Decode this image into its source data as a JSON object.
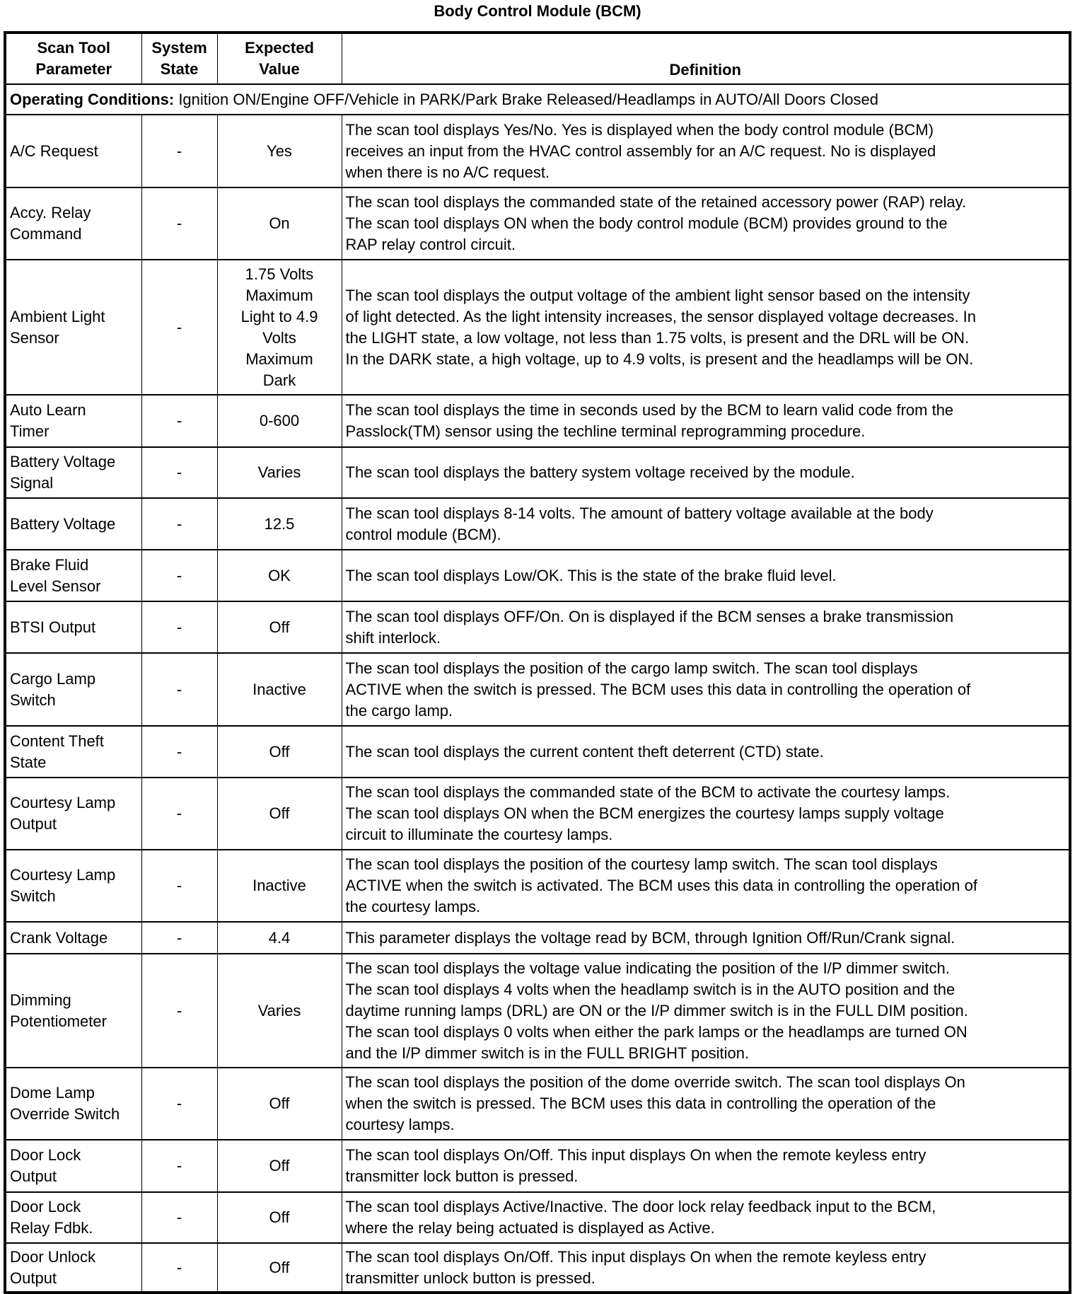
{
  "title": "Body Control Module (BCM)",
  "headers": {
    "parameter": "Scan Tool\nParameter",
    "state": "System\nState",
    "expected": "Expected\nValue",
    "definition": "Definition"
  },
  "operating_conditions": {
    "label": "Operating Conditions:",
    "text": " Ignition ON/Engine OFF/Vehicle in PARK/Park Brake Released/Headlamps in AUTO/All Doors Closed"
  },
  "rows": [
    {
      "parameter": "A/C Request",
      "state": "-",
      "expected": "Yes",
      "definition": "The scan tool displays Yes/No. Yes is displayed when the body control module (BCM)\nreceives an input from the HVAC control assembly for an A/C request. No is displayed\nwhen there is no A/C request."
    },
    {
      "parameter": "Accy. Relay\nCommand",
      "state": "-",
      "expected": "On",
      "definition": "The scan tool displays the commanded state of the retained accessory power (RAP) relay.\nThe scan tool displays ON when the body control module (BCM) provides ground to the\nRAP relay control circuit."
    },
    {
      "parameter": "Ambient Light\nSensor",
      "state": "-",
      "expected": "1.75 Volts\nMaximum\nLight to 4.9\nVolts\nMaximum\nDark",
      "definition": "The scan tool displays the output voltage of the ambient light sensor based on the intensity\nof light detected. As the light intensity increases, the sensor displayed voltage decreases. In\nthe LIGHT state, a low voltage, not less than 1.75 volts, is present and the DRL will be ON.\nIn the DARK state, a high voltage, up to 4.9 volts, is present and the headlamps will be ON."
    },
    {
      "parameter": "Auto Learn\nTimer",
      "state": "-",
      "expected": "0-600",
      "definition": "The scan tool displays the time in seconds used by the BCM to learn valid code from the\nPasslock(TM) sensor using the techline terminal reprogramming procedure."
    },
    {
      "parameter": "Battery Voltage\nSignal",
      "state": "-",
      "expected": "Varies",
      "definition": "The scan tool displays the battery system voltage received by the module."
    },
    {
      "parameter": "Battery Voltage",
      "state": "-",
      "expected": "12.5",
      "definition": "The scan tool displays 8-14 volts. The amount of battery voltage available at the body\ncontrol module (BCM)."
    },
    {
      "parameter": "Brake Fluid\nLevel Sensor",
      "state": "-",
      "expected": "OK",
      "definition": "The scan tool displays Low/OK. This is the state of the brake fluid level."
    },
    {
      "parameter": "BTSI Output",
      "state": "-",
      "expected": "Off",
      "definition": "The scan tool displays OFF/On. On is displayed if the BCM senses a brake transmission\nshift interlock."
    },
    {
      "parameter": "Cargo Lamp\nSwitch",
      "state": "-",
      "expected": "Inactive",
      "definition": "The scan tool displays the position of the cargo lamp switch. The scan tool displays\nACTIVE when the switch is pressed. The BCM uses this data in controlling the operation of\nthe cargo lamp."
    },
    {
      "parameter": "Content Theft\nState",
      "state": "-",
      "expected": "Off",
      "definition": "The scan tool displays the current content theft deterrent (CTD) state."
    },
    {
      "parameter": "Courtesy Lamp\nOutput",
      "state": "-",
      "expected": "Off",
      "definition": "The scan tool displays the commanded state of the BCM to activate the courtesy lamps.\nThe scan tool displays ON when the BCM energizes the courtesy lamps supply voltage\ncircuit to illuminate the courtesy lamps."
    },
    {
      "parameter": "Courtesy Lamp\nSwitch",
      "state": "-",
      "expected": "Inactive",
      "definition": "The scan tool displays the position of the courtesy lamp switch. The scan tool displays\nACTIVE when the switch is activated. The BCM uses this data in controlling the operation of\nthe courtesy lamps."
    },
    {
      "parameter": "Crank Voltage",
      "state": "-",
      "expected": "4.4",
      "definition": "This parameter displays the voltage read by BCM, through Ignition Off/Run/Crank signal."
    },
    {
      "parameter": "Dimming\nPotentiometer",
      "state": "-",
      "expected": "Varies",
      "definition": "The scan tool displays the voltage value indicating the position of the I/P dimmer switch.\nThe scan tool displays 4 volts when the headlamp switch is in the AUTO position and the\ndaytime running lamps (DRL) are ON or the I/P dimmer switch is in the FULL DIM position.\nThe scan tool displays 0 volts when either the park lamps or the headlamps are turned ON\nand the I/P dimmer switch is in the FULL BRIGHT position."
    },
    {
      "parameter": "Dome Lamp\nOverride Switch",
      "state": "-",
      "expected": "Off",
      "definition": "The scan tool displays the position of the dome override switch. The scan tool displays On\nwhen the switch is pressed. The BCM uses this data in controlling the operation of the\ncourtesy lamps."
    },
    {
      "parameter": "Door Lock\nOutput",
      "state": "-",
      "expected": "Off",
      "definition": "The scan tool displays On/Off. This input displays On when the remote keyless entry\ntransmitter lock button is pressed."
    },
    {
      "parameter": "Door Lock\nRelay Fdbk.",
      "state": "-",
      "expected": "Off",
      "definition": "The scan tool displays Active/Inactive. The door lock relay feedback input to the BCM,\nwhere the relay being actuated is displayed as Active."
    },
    {
      "parameter": "Door Unlock\nOutput",
      "state": "-",
      "expected": "Off",
      "definition": "The scan tool displays On/Off. This input displays On when the remote keyless entry\ntransmitter unlock button is pressed."
    }
  ]
}
